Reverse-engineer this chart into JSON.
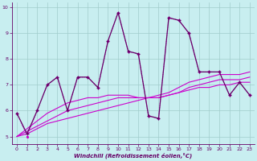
{
  "background_color": "#c8eef0",
  "grid_color": "#a0cccc",
  "line_color_main": "#cc00cc",
  "line_color_dark": "#660066",
  "xlim": [
    -0.5,
    23.5
  ],
  "ylim": [
    4.7,
    10.2
  ],
  "yticks": [
    5,
    6,
    7,
    8,
    9,
    10
  ],
  "xticks": [
    0,
    1,
    2,
    3,
    4,
    5,
    6,
    7,
    8,
    9,
    10,
    11,
    12,
    13,
    14,
    15,
    16,
    17,
    18,
    19,
    20,
    21,
    22,
    23
  ],
  "xlabel": "Windchill (Refroidissement éolien,°C)",
  "series_main_x": [
    0,
    1,
    2,
    3,
    4,
    5,
    6,
    7,
    8,
    9,
    10,
    11,
    12,
    13,
    14,
    15,
    16,
    17,
    18,
    19,
    20,
    21,
    22,
    23
  ],
  "series_main_y": [
    5.9,
    5.1,
    6.0,
    7.0,
    7.3,
    6.0,
    7.3,
    7.3,
    6.9,
    8.7,
    9.8,
    8.3,
    8.2,
    5.8,
    5.7,
    9.6,
    9.5,
    9.0,
    7.5,
    7.5,
    7.5,
    6.6,
    7.1,
    6.6
  ],
  "series_dot_x": [
    0,
    1,
    2,
    3,
    4,
    5,
    6,
    7,
    8,
    9,
    10,
    11,
    12,
    13,
    14,
    15,
    16,
    17,
    18,
    19,
    20,
    21,
    22,
    23
  ],
  "series_dot_y": [
    5.9,
    5.0,
    6.0,
    7.0,
    7.3,
    6.0,
    7.3,
    7.3,
    6.9,
    8.7,
    9.8,
    8.3,
    8.2,
    5.8,
    5.7,
    9.6,
    9.5,
    9.0,
    7.5,
    7.5,
    7.5,
    6.6,
    7.1,
    6.6
  ],
  "series_reg1_x": [
    0,
    1,
    2,
    3,
    4,
    5,
    6,
    7,
    8,
    9,
    10,
    11,
    12,
    13,
    14,
    15,
    16,
    17,
    18,
    19,
    20,
    21,
    22,
    23
  ],
  "series_reg1_y": [
    5.0,
    5.1,
    5.3,
    5.5,
    5.6,
    5.7,
    5.8,
    5.9,
    6.0,
    6.1,
    6.2,
    6.3,
    6.4,
    6.5,
    6.5,
    6.6,
    6.7,
    6.8,
    6.9,
    6.9,
    7.0,
    7.0,
    7.1,
    7.1
  ],
  "series_reg2_x": [
    0,
    1,
    2,
    3,
    4,
    5,
    6,
    7,
    8,
    9,
    10,
    11,
    12,
    13,
    14,
    15,
    16,
    17,
    18,
    19,
    20,
    21,
    22,
    23
  ],
  "series_reg2_y": [
    5.0,
    5.2,
    5.4,
    5.6,
    5.8,
    6.0,
    6.1,
    6.2,
    6.3,
    6.4,
    6.5,
    6.5,
    6.5,
    6.5,
    6.5,
    6.6,
    6.7,
    6.9,
    7.0,
    7.1,
    7.2,
    7.2,
    7.2,
    7.3
  ],
  "series_reg3_x": [
    0,
    1,
    2,
    3,
    4,
    5,
    6,
    7,
    8,
    9,
    10,
    11,
    12,
    13,
    14,
    15,
    16,
    17,
    18,
    19,
    20,
    21,
    22,
    23
  ],
  "series_reg3_y": [
    5.0,
    5.3,
    5.6,
    5.9,
    6.1,
    6.3,
    6.4,
    6.5,
    6.5,
    6.6,
    6.6,
    6.6,
    6.5,
    6.5,
    6.6,
    6.7,
    6.9,
    7.1,
    7.2,
    7.3,
    7.4,
    7.4,
    7.4,
    7.5
  ]
}
